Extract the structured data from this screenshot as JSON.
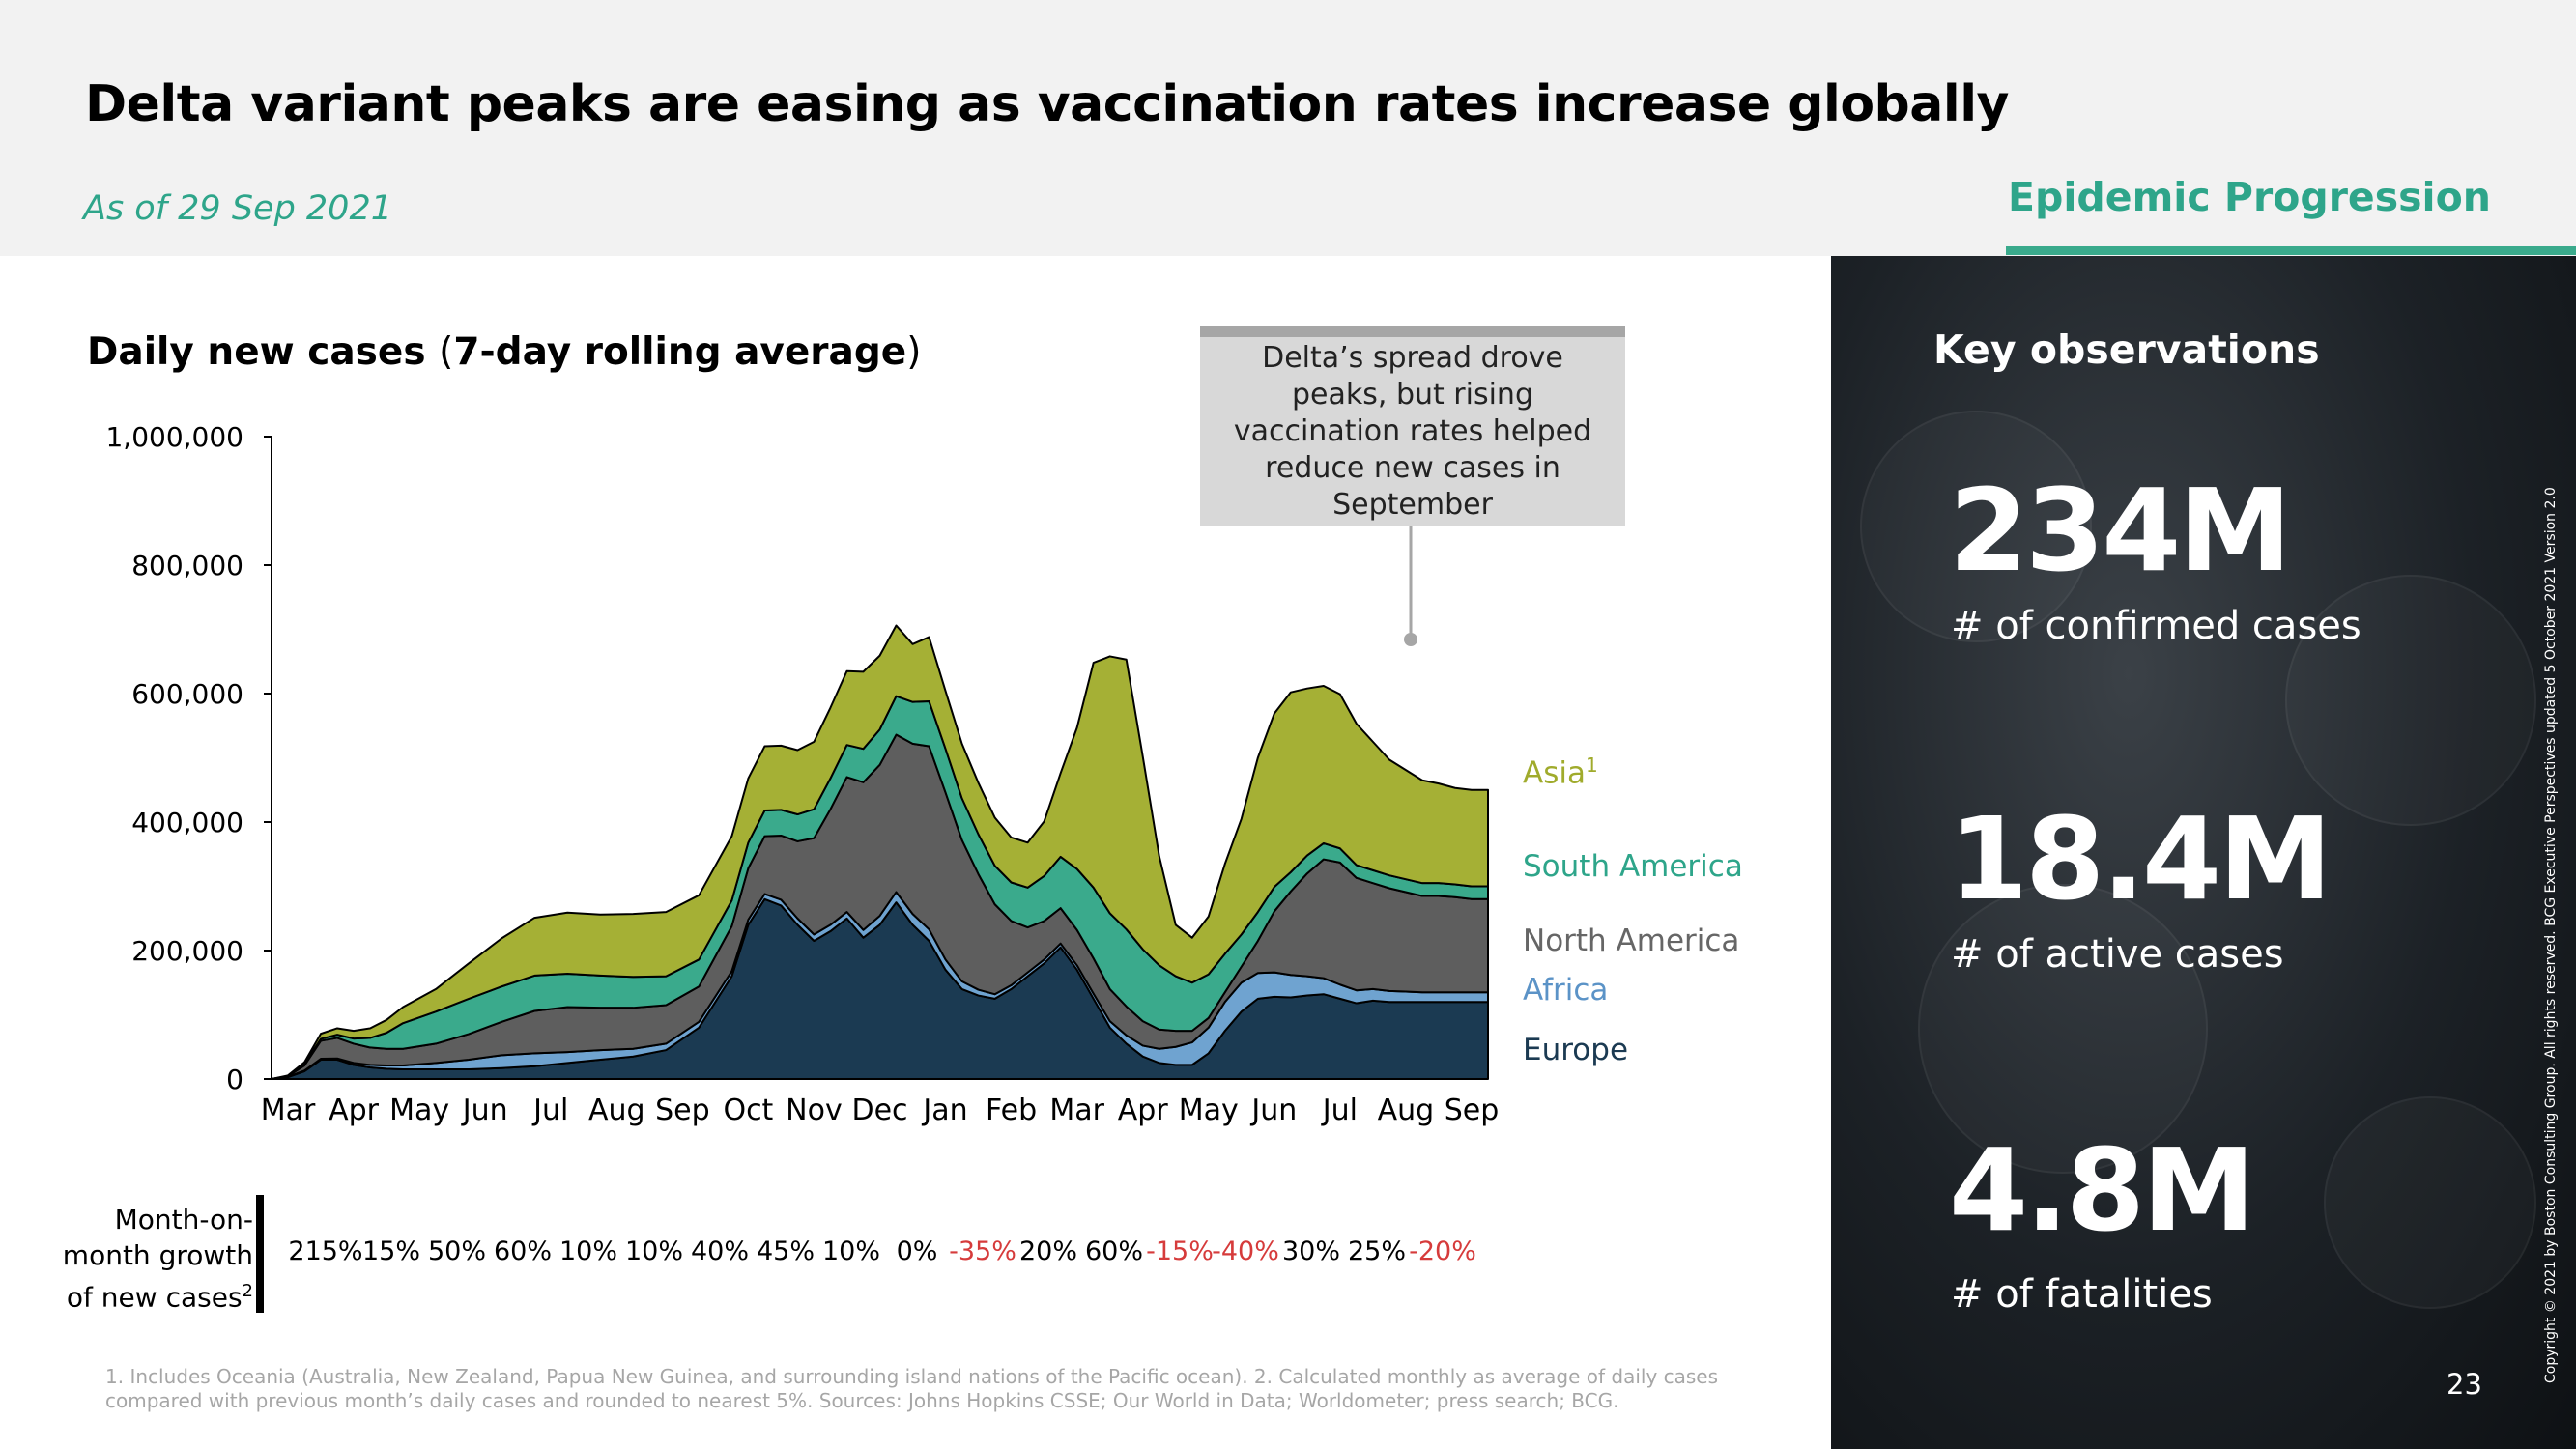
{
  "header": {
    "title": "Delta variant peaks are easing as vaccination rates increase globally",
    "as_of": "As of 29 Sep 2021",
    "section": "Epidemic Progression"
  },
  "chart_title_bold": "Daily new cases",
  "chart_title_paren_open": "(",
  "chart_title_inner": "7-day rolling average",
  "chart_title_paren_close": ")",
  "callout": "Delta’s spread drove peaks, but rising vaccination rates helped reduce new cases in September",
  "growth": {
    "label": "Month-on-month growth of new cases",
    "label_sup": "2",
    "values": [
      "215%",
      "15%",
      "50%",
      "60%",
      "10%",
      "10%",
      "40%",
      "45%",
      "10%",
      "0%",
      "-35%",
      "20%",
      "60%",
      "-15%",
      "-40%",
      "30%",
      "25%",
      "-20%"
    ],
    "negative_color": "#d63b3b"
  },
  "footnote": "1. Includes Oceania (Australia, New Zealand, Papua New Guinea, and surrounding island nations of the Pacific ocean). 2. Calculated monthly as average of daily cases compared with previous month’s daily cases and rounded to nearest 5%. Sources: Johns Hopkins CSSE; Our World in Data; Worldometer; press search; BCG.",
  "key_observations": {
    "title": "Key observations",
    "items": [
      {
        "value": "234M",
        "label": "# of confirmed cases"
      },
      {
        "value": "18.4M",
        "label": "# of active cases"
      },
      {
        "value": "4.8M",
        "label": "# of fatalities"
      }
    ]
  },
  "page_number": "23",
  "copyright": "Copyright © 2021 by Boston Consulting Group. All rights reserved. BCG Executive Perspectives updated 5 October 2021 Version 2.0",
  "colors": {
    "accent": "#2ea58a",
    "europe": "#1b3a52",
    "africa": "#6fa3d0",
    "north_america": "#5e5e5e",
    "south_america": "#3aaa8c",
    "asia": "#a5b035"
  },
  "chart_data": {
    "type": "area",
    "stacked": true,
    "title": "Daily new cases (7-day rolling average)",
    "ylim": [
      0,
      1000000
    ],
    "y_ticks": [
      0,
      200000,
      400000,
      600000,
      800000,
      1000000
    ],
    "y_tick_labels": [
      "0",
      "200,000",
      "400,000",
      "600,000",
      "800,000",
      "1,000,000"
    ],
    "x_tick_labels": [
      "Mar",
      "Apr",
      "May",
      "Jun",
      "Jul",
      "Aug",
      "Sep",
      "Oct",
      "Nov",
      "Dec",
      "Jan",
      "Feb",
      "Mar",
      "Apr",
      "May",
      "Jun",
      "Jul",
      "Aug",
      "Sep"
    ],
    "x": [
      0,
      0.25,
      0.5,
      0.75,
      1,
      1.25,
      1.5,
      1.75,
      2,
      2.5,
      3,
      3.5,
      4,
      4.5,
      5,
      5.5,
      6,
      6.5,
      7,
      7.25,
      7.5,
      7.75,
      8,
      8.25,
      8.5,
      8.75,
      9,
      9.25,
      9.5,
      9.75,
      10,
      10.25,
      10.5,
      10.75,
      11,
      11.25,
      11.5,
      11.75,
      12,
      12.25,
      12.5,
      12.75,
      13,
      13.25,
      13.5,
      13.75,
      14,
      14.25,
      14.5,
      14.75,
      15,
      15.25,
      15.5,
      15.75,
      16,
      16.25,
      16.5,
      16.75,
      17,
      17.25,
      17.5,
      17.75,
      18,
      18.25,
      18.5
    ],
    "series": [
      {
        "name": "Europe",
        "color": "#1b3a52",
        "values": [
          0,
          3000,
          12000,
          30000,
          30000,
          22000,
          18000,
          16000,
          15000,
          15000,
          15000,
          17000,
          20000,
          25000,
          30000,
          35000,
          45000,
          80000,
          160000,
          240000,
          280000,
          270000,
          240000,
          215000,
          230000,
          250000,
          220000,
          240000,
          275000,
          240000,
          215000,
          170000,
          140000,
          130000,
          125000,
          140000,
          160000,
          180000,
          205000,
          170000,
          125000,
          80000,
          55000,
          35000,
          25000,
          22000,
          22000,
          40000,
          75000,
          105000,
          125000,
          128000,
          127000,
          130000,
          132000,
          125000,
          118000,
          122000,
          120000,
          120000,
          120000,
          120000,
          120000,
          120000,
          120000
        ]
      },
      {
        "name": "Africa",
        "color": "#6fa3d0",
        "values": [
          0,
          500,
          1000,
          1500,
          2000,
          3000,
          4000,
          5000,
          6000,
          10000,
          15000,
          20000,
          20000,
          17000,
          15000,
          12000,
          10000,
          9000,
          8000,
          8000,
          8000,
          9000,
          10000,
          10000,
          10000,
          10000,
          12000,
          14000,
          16000,
          17000,
          18000,
          16000,
          12000,
          9000,
          7000,
          6000,
          6000,
          6000,
          6000,
          7000,
          8000,
          10000,
          13000,
          17000,
          22000,
          28000,
          35000,
          40000,
          45000,
          45000,
          40000,
          38000,
          35000,
          30000,
          25000,
          22000,
          20000,
          18000,
          17000,
          16000,
          15000,
          15000,
          15000,
          15000,
          15000
        ]
      },
      {
        "name": "North America",
        "color": "#5e5e5e",
        "values": [
          0,
          1000,
          8000,
          28000,
          32000,
          30000,
          27000,
          26000,
          26000,
          30000,
          40000,
          52000,
          66000,
          70000,
          66000,
          64000,
          60000,
          55000,
          70000,
          80000,
          90000,
          100000,
          120000,
          150000,
          180000,
          210000,
          230000,
          235000,
          245000,
          265000,
          285000,
          260000,
          220000,
          180000,
          140000,
          100000,
          70000,
          60000,
          55000,
          55000,
          55000,
          50000,
          45000,
          38000,
          30000,
          25000,
          18000,
          15000,
          15000,
          25000,
          50000,
          95000,
          130000,
          160000,
          185000,
          190000,
          175000,
          165000,
          160000,
          155000,
          150000,
          150000,
          148000,
          145000,
          145000
        ]
      },
      {
        "name": "South America",
        "color": "#3aaa8c",
        "values": [
          0,
          0,
          2000,
          3000,
          5000,
          8000,
          15000,
          25000,
          40000,
          50000,
          55000,
          55000,
          55000,
          52000,
          50000,
          48000,
          45000,
          42000,
          40000,
          40000,
          40000,
          40000,
          42000,
          45000,
          48000,
          50000,
          52000,
          55000,
          60000,
          65000,
          70000,
          68000,
          65000,
          62000,
          60000,
          60000,
          62000,
          70000,
          80000,
          95000,
          110000,
          118000,
          120000,
          112000,
          100000,
          85000,
          75000,
          68000,
          60000,
          50000,
          45000,
          38000,
          30000,
          28000,
          25000,
          22000,
          20000,
          20000,
          20000,
          20000,
          20000,
          20000,
          20000,
          20000,
          20000
        ]
      },
      {
        "name": "Asia",
        "color": "#a5b035",
        "values": [
          0,
          1000,
          3000,
          8000,
          10000,
          12000,
          15000,
          20000,
          25000,
          35000,
          55000,
          75000,
          90000,
          95000,
          95000,
          98000,
          100000,
          100000,
          100000,
          100000,
          100000,
          100000,
          100000,
          105000,
          110000,
          115000,
          120000,
          115000,
          110000,
          90000,
          100000,
          90000,
          85000,
          80000,
          75000,
          70000,
          70000,
          85000,
          130000,
          220000,
          350000,
          400000,
          420000,
          300000,
          170000,
          80000,
          70000,
          90000,
          140000,
          180000,
          240000,
          270000,
          280000,
          260000,
          245000,
          240000,
          220000,
          200000,
          180000,
          170000,
          160000,
          155000,
          150000,
          150000,
          150000
        ]
      }
    ]
  }
}
